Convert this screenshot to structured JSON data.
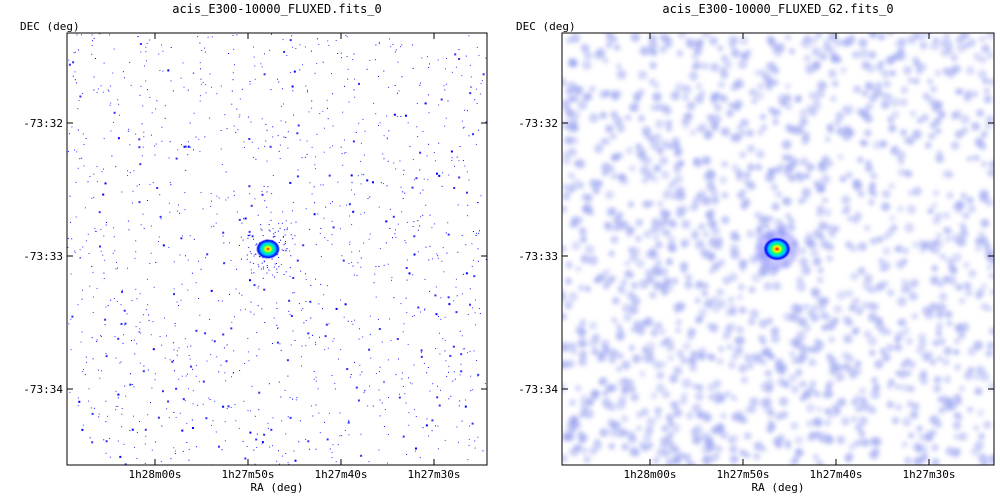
{
  "chart_data": [
    {
      "type": "heatmap",
      "title": "acis_E300-10000_FLUXED.fits_0",
      "xlabel": "RA (deg)",
      "ylabel": "DEC (deg)",
      "xticks": [
        "1h28m00s",
        "1h27m50s",
        "1h27m40s",
        "1h27m30s"
      ],
      "yticks": [
        "-73:32",
        "-73:33",
        "-73:34"
      ],
      "rendering": "sparse-photon-events",
      "source_colors": [
        "#0000ff",
        "#00c8ff",
        "#00ff80",
        "#ffff00",
        "#ff0000"
      ],
      "background_color": "#3030ff"
    },
    {
      "type": "heatmap",
      "title": "acis_E300-10000_FLUXED_G2.fits_0",
      "xlabel": "RA (deg)",
      "ylabel": "DEC (deg)",
      "xticks": [
        "1h28m00s",
        "1h27m50s",
        "1h27m40s",
        "1h27m30s"
      ],
      "yticks": [
        "-73:32",
        "-73:33",
        "-73:34"
      ],
      "rendering": "gaussian-smoothed",
      "source_colors": [
        "#0000ff",
        "#00c8ff",
        "#00ff80",
        "#ffff00",
        "#ff0000"
      ],
      "background_color": "#a0a8f0"
    }
  ]
}
